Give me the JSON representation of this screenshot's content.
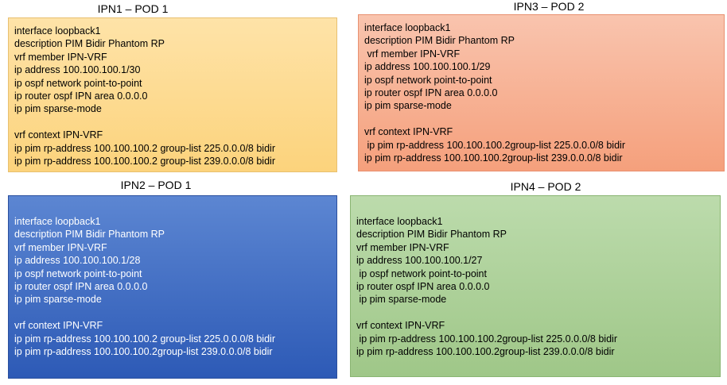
{
  "panels": [
    {
      "title": "IPN1 – POD 1",
      "blocks": [
        [
          "interface loopback1",
          "description PIM Bidir Phantom RP",
          "vrf member IPN-VRF",
          "ip address 100.100.100.1/30",
          "ip ospf network point-to-point",
          "ip router ospf IPN area 0.0.0.0",
          "ip pim sparse-mode"
        ],
        [
          "vrf context IPN-VRF",
          "ip pim rp-address 100.100.100.2 group-list 225.0.0.0/8 bidir",
          "ip pim rp-address 100.100.100.2 group-list 239.0.0.0/8 bidir"
        ]
      ]
    },
    {
      "title": "IPN3 – POD 2",
      "blocks": [
        [
          "interface loopback1",
          "description PIM Bidir Phantom RP",
          " vrf member IPN-VRF",
          "ip address 100.100.100.1/29",
          "ip ospf network point-to-point",
          "ip router ospf IPN area 0.0.0.0",
          "ip pim sparse-mode"
        ],
        [
          "vrf context IPN-VRF",
          " ip pim rp-address 100.100.100.2group-list 225.0.0.0/8 bidir",
          "ip pim rp-address 100.100.100.2group-list 239.0.0.0/8 bidir"
        ]
      ]
    },
    {
      "title": "IPN2 – POD 1",
      "blocks": [
        [
          "interface loopback1",
          "description PIM Bidir Phantom RP",
          "vrf member IPN-VRF",
          "ip address 100.100.100.1/28",
          "ip ospf network point-to-point",
          "ip router ospf IPN area 0.0.0.0",
          "ip pim sparse-mode"
        ],
        [
          "vrf context IPN-VRF",
          "ip pim rp-address 100.100.100.2 group-list 225.0.0.0/8 bidir",
          "ip pim rp-address 100.100.100.2group-list 239.0.0.0/8 bidir"
        ]
      ]
    },
    {
      "title": "IPN4 – POD 2",
      "blocks": [
        [
          "interface loopback1",
          "description PIM Bidir Phantom RP",
          "vrf member IPN-VRF",
          "ip address 100.100.100.1/27",
          " ip ospf network point-to-point",
          "ip router ospf IPN area 0.0.0.0",
          " ip pim sparse-mode"
        ],
        [
          "vrf context IPN-VRF",
          " ip pim rp-address 100.100.100.2group-list 225.0.0.0/8 bidir",
          "ip pim rp-address 100.100.100.2group-list 239.0.0.0/8 bidir"
        ]
      ]
    }
  ]
}
